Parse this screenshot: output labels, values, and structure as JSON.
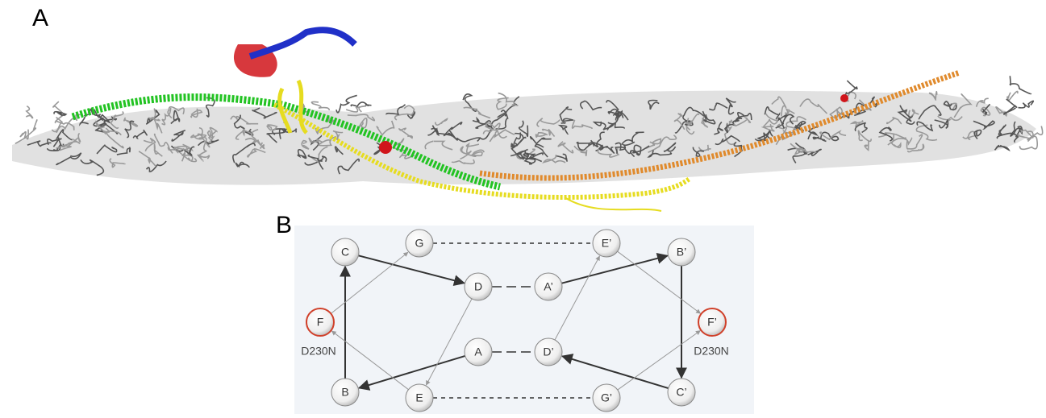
{
  "panels": {
    "a": {
      "label": "A"
    },
    "b": {
      "label": "B",
      "nodes": [
        {
          "label": "C"
        },
        {
          "label": "G"
        },
        {
          "label": "E’"
        },
        {
          "label": "B’"
        },
        {
          "label": "D"
        },
        {
          "label": "A’"
        },
        {
          "label": "F"
        },
        {
          "label": "F’"
        },
        {
          "label": "A"
        },
        {
          "label": "D’"
        },
        {
          "label": "B"
        },
        {
          "label": "E"
        },
        {
          "label": "G’"
        },
        {
          "label": "C’"
        }
      ],
      "mutation_labels": [
        "D230N",
        "D230N"
      ]
    }
  }
}
